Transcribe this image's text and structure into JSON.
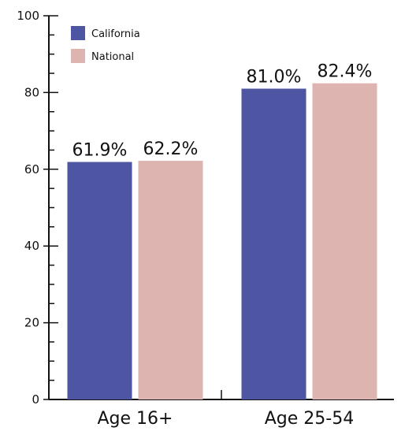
{
  "chart_data": {
    "type": "bar",
    "categories": [
      "Age 16+",
      "Age 25-54"
    ],
    "series": [
      {
        "name": "California",
        "values": [
          61.9,
          81.0
        ],
        "labels": [
          "61.9%",
          "81.0%"
        ],
        "color": "#4e55a3"
      },
      {
        "name": "National",
        "values": [
          62.2,
          82.4
        ],
        "labels": [
          "62.2%",
          "82.4%"
        ],
        "color": "#ddb4af"
      }
    ],
    "ylim": [
      0,
      100
    ],
    "yticks": [
      0,
      20,
      40,
      60,
      80,
      100
    ],
    "ytick_labels": [
      "0",
      "20",
      "40",
      "60",
      "80",
      "100"
    ],
    "minor_tick_step": 5,
    "grid": false,
    "legend_position": "top-left"
  }
}
